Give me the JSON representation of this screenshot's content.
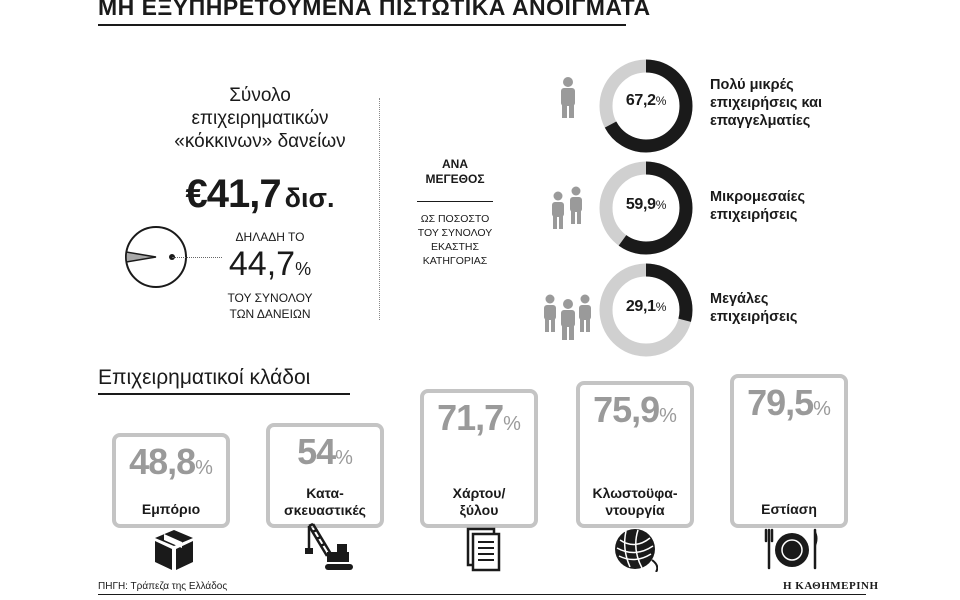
{
  "title": "ΜΗ ΕΞΥΠΗΡΕΤΟΥΜΕΝΑ ΠΙΣΤΩΤΙΚΑ ΑΝΟΙΓΜΑΤΑ",
  "total": {
    "heading_lines": [
      "Σύνολο",
      "επιχειρηματικών",
      "«κόκκινων» δανείων"
    ],
    "amount": "€41,7",
    "amount_unit": "δισ.",
    "share_prefix": "ΔΗΛΑΔΗ ΤΟ",
    "share_value": "44,7",
    "share_unit": "%",
    "share_suffix_lines": [
      "ΤΟΥ ΣΥΝΟΛΟΥ",
      "ΤΩΝ ΔΑΝΕΙΩΝ"
    ]
  },
  "by_size": {
    "heading_lines": [
      "ΑΝΑ",
      "ΜΕΓΕΘΟΣ"
    ],
    "subheading_lines": [
      "ΩΣ ΠΟΣΟΣΤΟ",
      "ΤΟΥ ΣΥΝΟΛΟΥ",
      "ΕΚΑΣΤΗΣ",
      "ΚΑΤΗΓΟΡΙΑΣ"
    ]
  },
  "branches_title": "Επιχειρηματικοί κλάδοι",
  "chart_data": [
    {
      "type": "pie",
      "values": [
        44.7
      ],
      "unit": "%"
    },
    {
      "type": "pie",
      "categories": [
        "Πολύ μικρές επιχειρήσεις και επαγγελματίες",
        "Μικρομεσαίες επιχειρήσεις",
        "Μεγάλες επιχειρήσεις"
      ],
      "labels": [
        "67,2",
        "59,9",
        "29,1"
      ],
      "desc_lines": [
        [
          "Πολύ μικρές",
          "επιχειρήσεις και",
          "επαγγελματίες"
        ],
        [
          "Μικρομεσαίες",
          "επιχειρήσεις"
        ],
        [
          "Μεγάλες",
          "επιχειρήσεις"
        ]
      ],
      "values": [
        67.2,
        59.9,
        29.1
      ],
      "unit": "%"
    },
    {
      "type": "bar",
      "categories": [
        "Εμπόριο",
        "Κατασκευαστικές",
        "Χάρτου/ ξύλου",
        "Κλωστοϋφαντουργία",
        "Εστίαση"
      ],
      "label_lines": [
        [
          "Εμπόριο"
        ],
        [
          "Κατα-",
          "σκευαστικές"
        ],
        [
          "Χάρτου/",
          "ξύλου"
        ],
        [
          "Κλωστοϋφα-",
          "ντουργία"
        ],
        [
          "Εστίαση"
        ]
      ],
      "labels": [
        "48,8",
        "54",
        "71,7",
        "75,9",
        "79,5"
      ],
      "icons": [
        "box-icon",
        "crane-icon",
        "paper-stack-icon",
        "yarn-ball-icon",
        "plate-cutlery-icon"
      ],
      "values": [
        48.8,
        54,
        71.7,
        75.9,
        79.5
      ],
      "unit": "%"
    }
  ],
  "colors": {
    "ring_fill": "#1a1a1a",
    "ring_track": "#d0d0d0",
    "pie_fill": "#a8a8a8",
    "card_border": "#c4c4c4",
    "card_value": "#9a9a9a"
  },
  "source": "ΠΗΓΗ: Τράπεζα της Ελλάδος",
  "publisher": "Η ΚΑΘΗΜΕΡΙΝΗ"
}
